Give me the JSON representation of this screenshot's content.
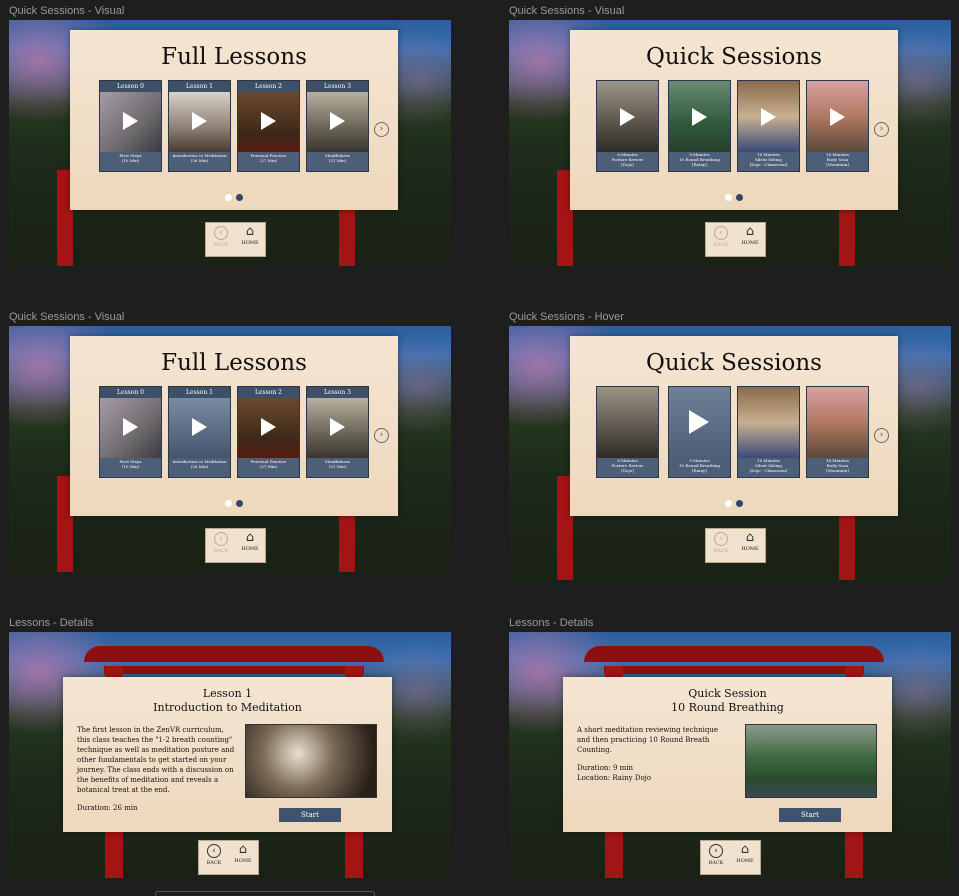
{
  "frames": [
    {
      "label": "Quick Sessions - Visual",
      "title": "Full Lessons",
      "cards": [
        {
          "top": "Lesson 0",
          "line1": "First Steps",
          "line2": "(10 Min)"
        },
        {
          "top": "Lesson 1",
          "line1": "Introduction to Meditation",
          "line2": "(26 Min)"
        },
        {
          "top": "Lesson 2",
          "line1": "Personal Practice",
          "line2": "(27 Min)"
        },
        {
          "top": "Lesson 3",
          "line1": "Mindfulness",
          "line2": "(31 Min)"
        }
      ],
      "back": "BACK",
      "home": "HOME"
    },
    {
      "label": "Quick Sessions - Visual",
      "title": "Quick Sessions",
      "cards": [
        {
          "top": "",
          "line1": "6 Minutes",
          "line2": "Posture Review",
          "line3": "[Dojo]"
        },
        {
          "top": "",
          "line1": "9 Minutes",
          "line2": "10 Round Breathing",
          "line3": "[Rainy]"
        },
        {
          "top": "",
          "line1": "10 Minutes",
          "line2": "Silent Sitting",
          "line3": "[Dojo - Classroom]"
        },
        {
          "top": "",
          "line1": "16 Minutes",
          "line2": "Body Scan",
          "line3": "[Mountain]"
        }
      ],
      "back": "BACK",
      "home": "HOME"
    },
    {
      "label": "Quick Sessions - Visual",
      "title": "Full Lessons",
      "cards": [
        {
          "top": "Lesson 0",
          "line1": "First Steps",
          "line2": "(10 Min)"
        },
        {
          "top": "Lesson 1",
          "line1": "Introduction to Meditation",
          "line2": "(26 Min)"
        },
        {
          "top": "Lesson 2",
          "line1": "Personal Practice",
          "line2": "(27 Min)"
        },
        {
          "top": "Lesson 3",
          "line1": "Mindfulness",
          "line2": "(31 Min)"
        }
      ],
      "back": "BACK",
      "home": "HOME"
    },
    {
      "label": "Quick Sessions - Hover",
      "title": "Quick Sessions",
      "cards": [
        {
          "top": "",
          "line1": "6 Minutes",
          "line2": "Posture Review",
          "line3": "[Dojo]"
        },
        {
          "top": "",
          "line1": "9 Minutes",
          "line2": "10 Round Breathing",
          "line3": "[Rainy]"
        },
        {
          "top": "",
          "line1": "10 Minutes",
          "line2": "Silent Sitting",
          "line3": "[Dojo - Classroom]"
        },
        {
          "top": "",
          "line1": "16 Minutes",
          "line2": "Body Scan",
          "line3": "[Mountain]"
        }
      ],
      "back": "BACK",
      "home": "HOME"
    }
  ],
  "details": [
    {
      "label": "Lessons - Details",
      "title1": "Lesson 1",
      "title2": "Introduction to Meditation",
      "description": "The first lesson in the ZenVR curriculum, this class teaches the \"1-2 breath counting\" technique as well as meditation posture and other fundamentals to get started on your journey. The class ends with a discussion on the benefits of meditation and reveals a botanical treat at the end.",
      "duration": "Duration: 26 min",
      "location": "",
      "start": "Start",
      "back": "BACK",
      "home": "HOME"
    },
    {
      "label": "Lessons - Details",
      "title1": "Quick Session",
      "title2": "10 Round Breathing",
      "description": "A short meditation reviewing technique and then practicing 10 Round Breath Counting.",
      "duration": "Duration: 9 min",
      "location": "Location: Rainy Dojo",
      "start": "Start",
      "back": "BACK",
      "home": "HOME"
    }
  ],
  "colors": {
    "panel": "#f1e2cf",
    "card": "#4d5f78",
    "start_button": "#3f536d",
    "torii_red": "#a31414",
    "dot_active": "#2e4766"
  },
  "icons": {
    "play": "play-icon",
    "next": "chevron-right-circle-icon",
    "back": "chevron-left-circle-icon",
    "home": "home-icon"
  }
}
